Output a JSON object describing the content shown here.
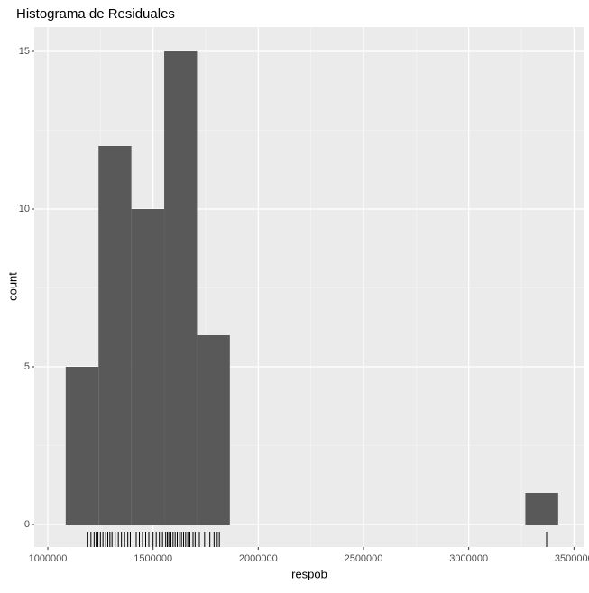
{
  "chart_data": {
    "type": "histogram",
    "title": "Histograma de Residuales",
    "x_label": "respob",
    "y_label": "count",
    "bins": [
      1085000,
      1241000,
      1397000,
      1553000,
      1709000,
      1865000,
      2021000,
      2177000,
      2333000,
      2489000,
      2645000,
      2801000,
      2957000,
      3113000,
      3269000,
      3425000
    ],
    "counts": [
      5,
      12,
      10,
      15,
      6,
      0,
      0,
      0,
      0,
      0,
      0,
      0,
      0,
      0,
      1
    ],
    "color": "#595959",
    "rug": [
      1190000,
      1205000,
      1220000,
      1230000,
      1238000,
      1250000,
      1262000,
      1275000,
      1285000,
      1295000,
      1305000,
      1320000,
      1335000,
      1350000,
      1365000,
      1380000,
      1392000,
      1405000,
      1420000,
      1435000,
      1450000,
      1465000,
      1480000,
      1500000,
      1515000,
      1530000,
      1545000,
      1560000,
      1568000,
      1575000,
      1585000,
      1595000,
      1605000,
      1615000,
      1625000,
      1635000,
      1645000,
      1655000,
      1665000,
      1675000,
      1690000,
      1700000,
      1720000,
      1745000,
      1770000,
      1790000,
      1805000,
      1815000,
      3370000
    ],
    "rug_color": "#000000",
    "xlim": [
      935700,
      3550000
    ],
    "xticks": [
      1000000,
      1500000,
      2000000,
      2500000,
      3000000,
      3500000
    ],
    "ylim": [
      -0.714,
      15.771
    ],
    "yticks": [
      0,
      5,
      10,
      15
    ],
    "grid": true
  }
}
